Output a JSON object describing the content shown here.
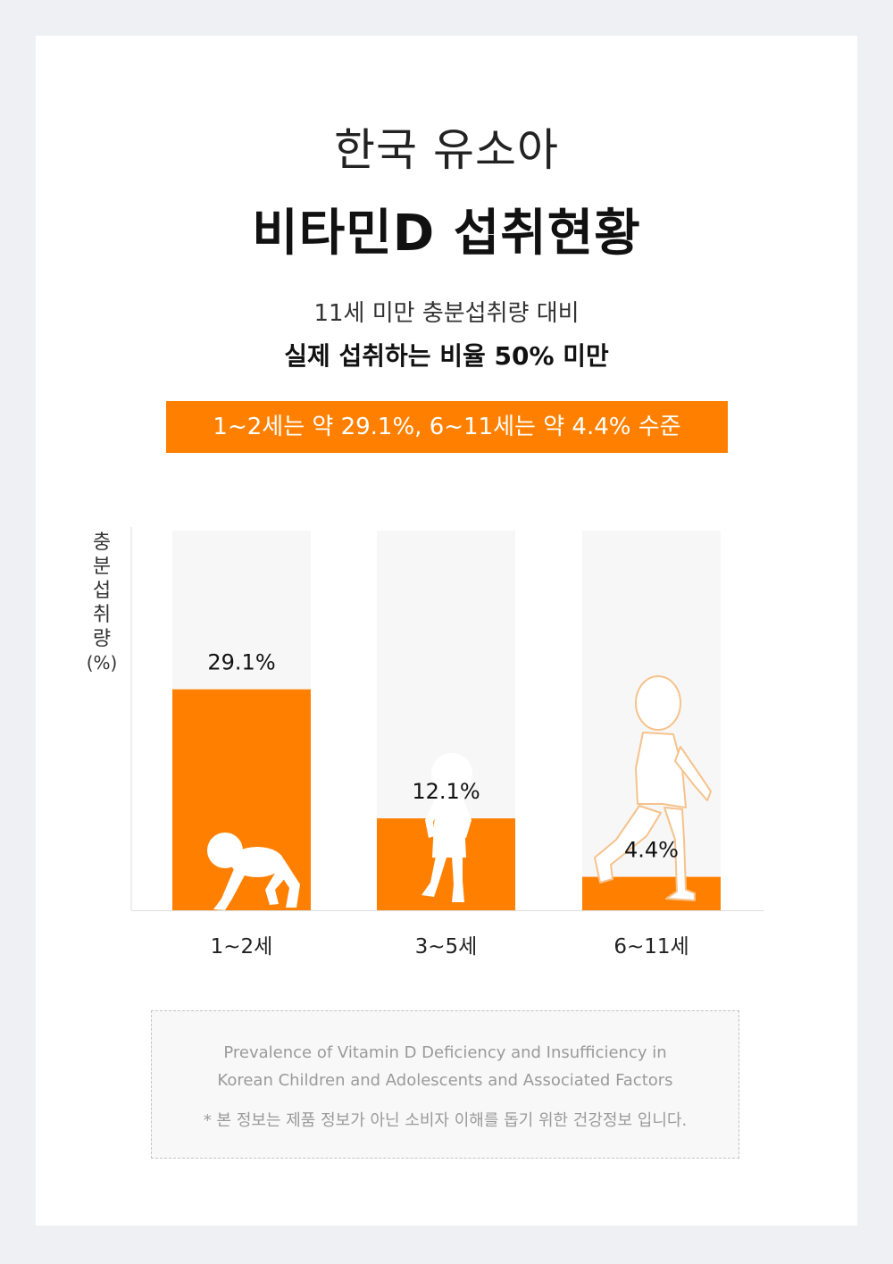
{
  "header": {
    "title_line1": "한국 유소아",
    "title_line2": "비타민D 섭취현황",
    "subtitle_line1": "11세 미만 충분섭취량 대비",
    "subtitle_line2": "실제 섭취하는 비율 50% 미만",
    "banner": "1~2세는 약 29.1%, 6~11세는 약 4.4% 수준"
  },
  "chart_data": {
    "type": "bar",
    "categories": [
      "1~2세",
      "3~5세",
      "6~11세"
    ],
    "values": [
      29.1,
      12.1,
      4.4
    ],
    "data_labels": [
      "29.1%",
      "12.1%",
      "4.4%"
    ],
    "ylabel_chars": [
      "충",
      "분",
      "섭",
      "취",
      "량",
      "(%)"
    ],
    "ylim": [
      0,
      50
    ],
    "bar_color": "#ff8000",
    "track_color": "#f7f7f7",
    "grid": false,
    "legend": "none"
  },
  "illustrations": {
    "bar1": "crawling-baby-silhouette",
    "bar2": "toddler-silhouette",
    "bar3": "walking-child-outline"
  },
  "note": {
    "line1": "Prevalence of Vitamin D Deficiency and Insufficiency in",
    "line2": "Korean Children  and Adolescents and Associated Factors",
    "line3": "* 본 정보는 제품 정보가 아닌 소비자 이해를 돕기 위한 건강정보 입니다."
  },
  "colors": {
    "accent": "#ff8000",
    "background": "#eef0f4",
    "card": "#ffffff"
  }
}
